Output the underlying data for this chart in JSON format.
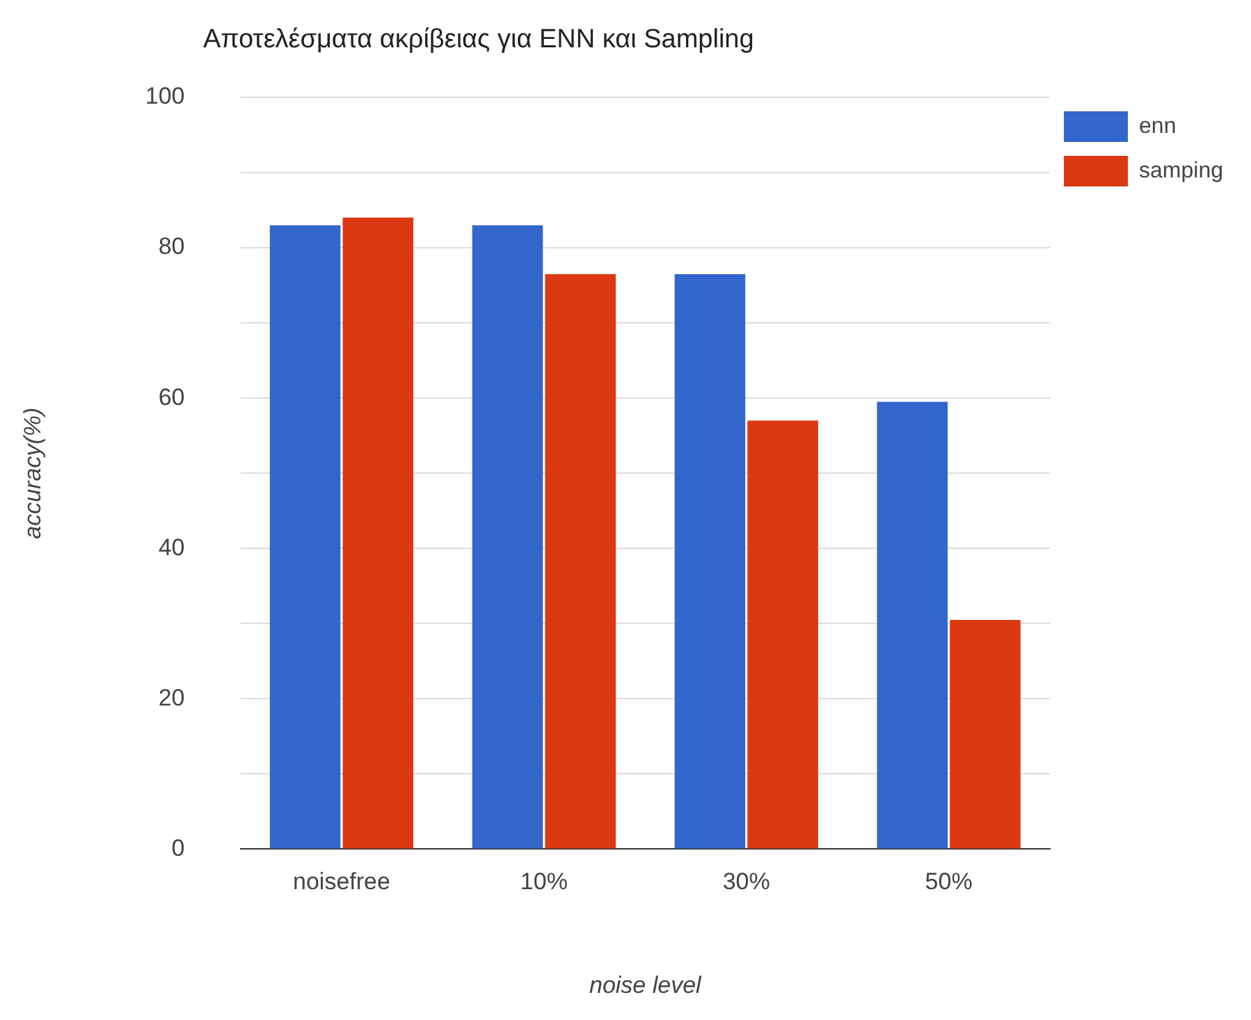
{
  "chart_data": {
    "type": "bar",
    "title": "Αποτελέσματα ακρίβειας για ENN και Sampling",
    "xlabel": "noise level",
    "ylabel": "accuracy(%)",
    "categories": [
      "noisefree",
      "10%",
      "30%",
      "50%"
    ],
    "series": [
      {
        "name": "enn",
        "color": "#3366cc",
        "values": [
          83,
          83,
          76.5,
          59.5
        ]
      },
      {
        "name": "samping",
        "color": "#dc3912",
        "values": [
          84,
          76.5,
          57,
          30.5
        ]
      }
    ],
    "ylim": [
      0,
      100
    ],
    "yticks": [
      0,
      {
        "value": 10,
        "label": null
      },
      20,
      {
        "value": 30,
        "label": null
      },
      40,
      {
        "value": 50,
        "label": null
      },
      60,
      {
        "value": 70,
        "label": null
      },
      80,
      {
        "value": 90,
        "label": null
      },
      100
    ],
    "grid": "y",
    "legend": "top right"
  }
}
